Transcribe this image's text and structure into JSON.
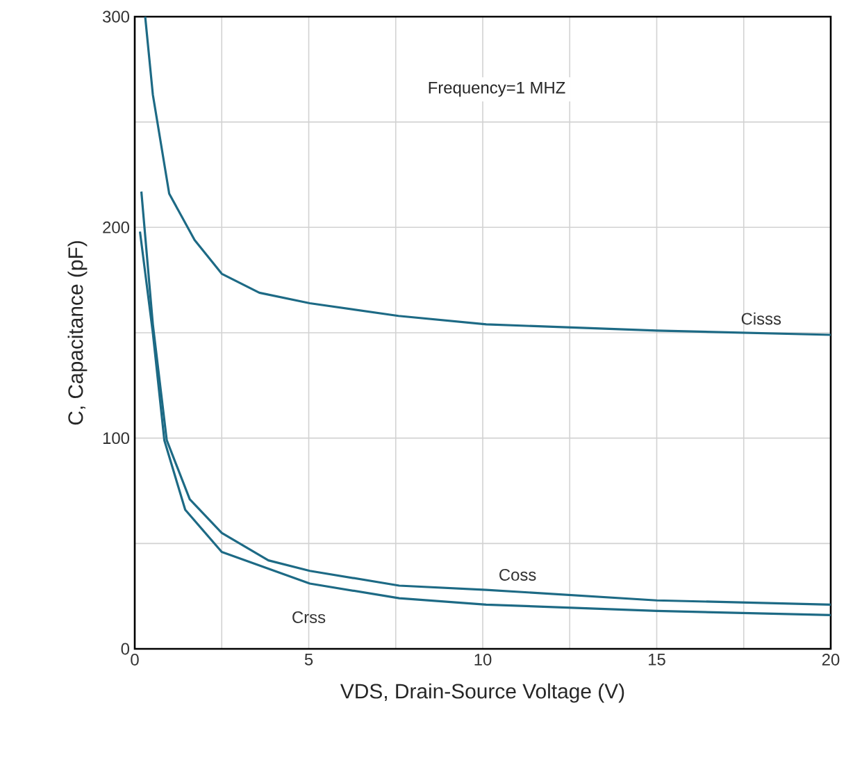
{
  "chart_data": {
    "type": "line",
    "xlabel": "VDS, Drain-Source Voltage (V)",
    "ylabel": "C, Capacitance (pF)",
    "annotations": [
      "Frequency=1 MHZ"
    ],
    "xlim": [
      0,
      20
    ],
    "ylim": [
      0,
      300
    ],
    "xticks": [
      0,
      {
        "value": 2.5,
        "label": null
      },
      5,
      {
        "value": 7.5,
        "label": null
      },
      10,
      {
        "value": 12.5,
        "label": null
      },
      15,
      {
        "value": 17.5,
        "label": null
      },
      20
    ],
    "yticks": [
      0,
      {
        "value": 50,
        "label": null
      },
      100,
      {
        "value": 150,
        "label": null
      },
      200,
      {
        "value": 250,
        "label": null
      },
      300
    ],
    "grid": true,
    "marker": "none",
    "line_style": "solid",
    "series": [
      {
        "name": "Cisss",
        "color": "#1d6a85",
        "x": [
          0.3,
          0.52,
          0.99,
          1.72,
          2.5,
          3.58,
          5.03,
          7.58,
          10.1,
          15.0,
          20
        ],
        "values": [
          300,
          263,
          216,
          194,
          178,
          169,
          164,
          158,
          154,
          151,
          149
        ]
      },
      {
        "name": "Coss",
        "color": "#1d6a85",
        "x": [
          0.19,
          0.52,
          0.92,
          1.58,
          2.5,
          3.84,
          5.03,
          7.6,
          10.1,
          15.0,
          20
        ],
        "values": [
          217,
          154,
          99,
          71,
          55,
          42,
          37,
          30,
          28,
          23,
          21
        ]
      },
      {
        "name": "Crss",
        "color": "#1d6a85",
        "x": [
          0.15,
          0.52,
          0.85,
          1.45,
          2.5,
          5.03,
          7.6,
          10.1,
          15.0,
          20
        ],
        "values": [
          198,
          150,
          99,
          66,
          46,
          31,
          24,
          21,
          18,
          16
        ]
      }
    ]
  }
}
